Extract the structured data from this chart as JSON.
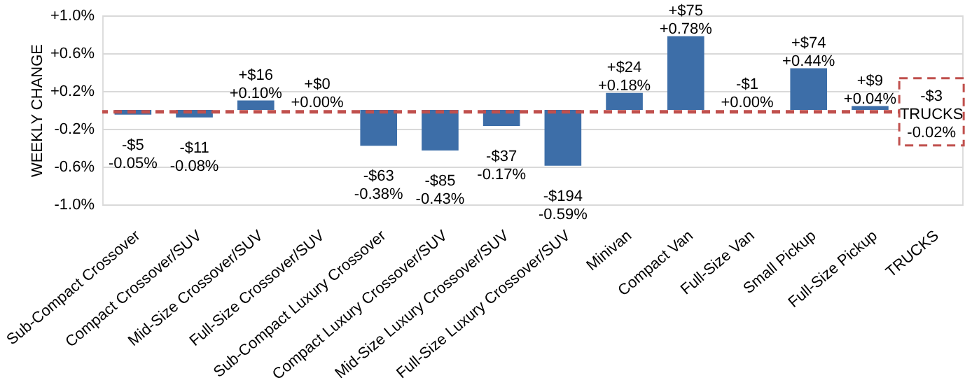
{
  "chart_data": {
    "type": "bar",
    "ylabel": "WEEKLY CHANGE",
    "categories": [
      "Sub-Compact Crossover",
      "Compact Crossover/SUV",
      "Mid-Size Crossover/SUV",
      "Full-Size Crossover/SUV",
      "Sub-Compact Luxury Crossover",
      "Compact Luxury Crossover/SUV",
      "Mid-Size Luxury Crossover/SUV",
      "Full-Size Luxury Crossover/SUV",
      "Minivan",
      "Compact Van",
      "Full-Size Van",
      "Small Pickup",
      "Full-Size Pickup",
      "TRUCKS"
    ],
    "series": [
      {
        "color": "#3d6ea8",
        "values": [
          -0.05,
          -0.08,
          0.1,
          0.0,
          -0.38,
          -0.43,
          -0.17,
          -0.59,
          0.18,
          0.78,
          0.0,
          0.44,
          0.04,
          null
        ],
        "value_labels": [
          "-$5\n-0.05%",
          "-$11\n-0.08%",
          "+$16\n+0.10%",
          "+$0\n+0.00%",
          "-$63\n-0.38%",
          "-$85\n-0.43%",
          "-$37\n-0.17%",
          "-$194\n-0.59%",
          "+$24\n+0.18%",
          "+$75\n+0.78%",
          "-$1\n+0.00%",
          "+$74\n+0.44%",
          "+$9\n+0.04%",
          null
        ]
      }
    ],
    "ylim": [
      -1.0,
      1.0
    ],
    "yticks": [
      {
        "value": 1.0,
        "label": "+1.0%"
      },
      {
        "value": 0.6,
        "label": "+0.6%"
      },
      {
        "value": 0.2,
        "label": "+0.2%"
      },
      {
        "value": -0.2,
        "label": "-0.2%"
      },
      {
        "value": -0.6,
        "label": "-0.6%"
      },
      {
        "value": -1.0,
        "label": "-1.0%"
      }
    ],
    "ref_lines": [
      {
        "axis": "y",
        "value": -0.02,
        "label": "-$3\nTRUCKS\n-0.02%",
        "color": "#c0504d",
        "line_style": "dashed"
      }
    ],
    "grid": "y",
    "legend": false
  }
}
